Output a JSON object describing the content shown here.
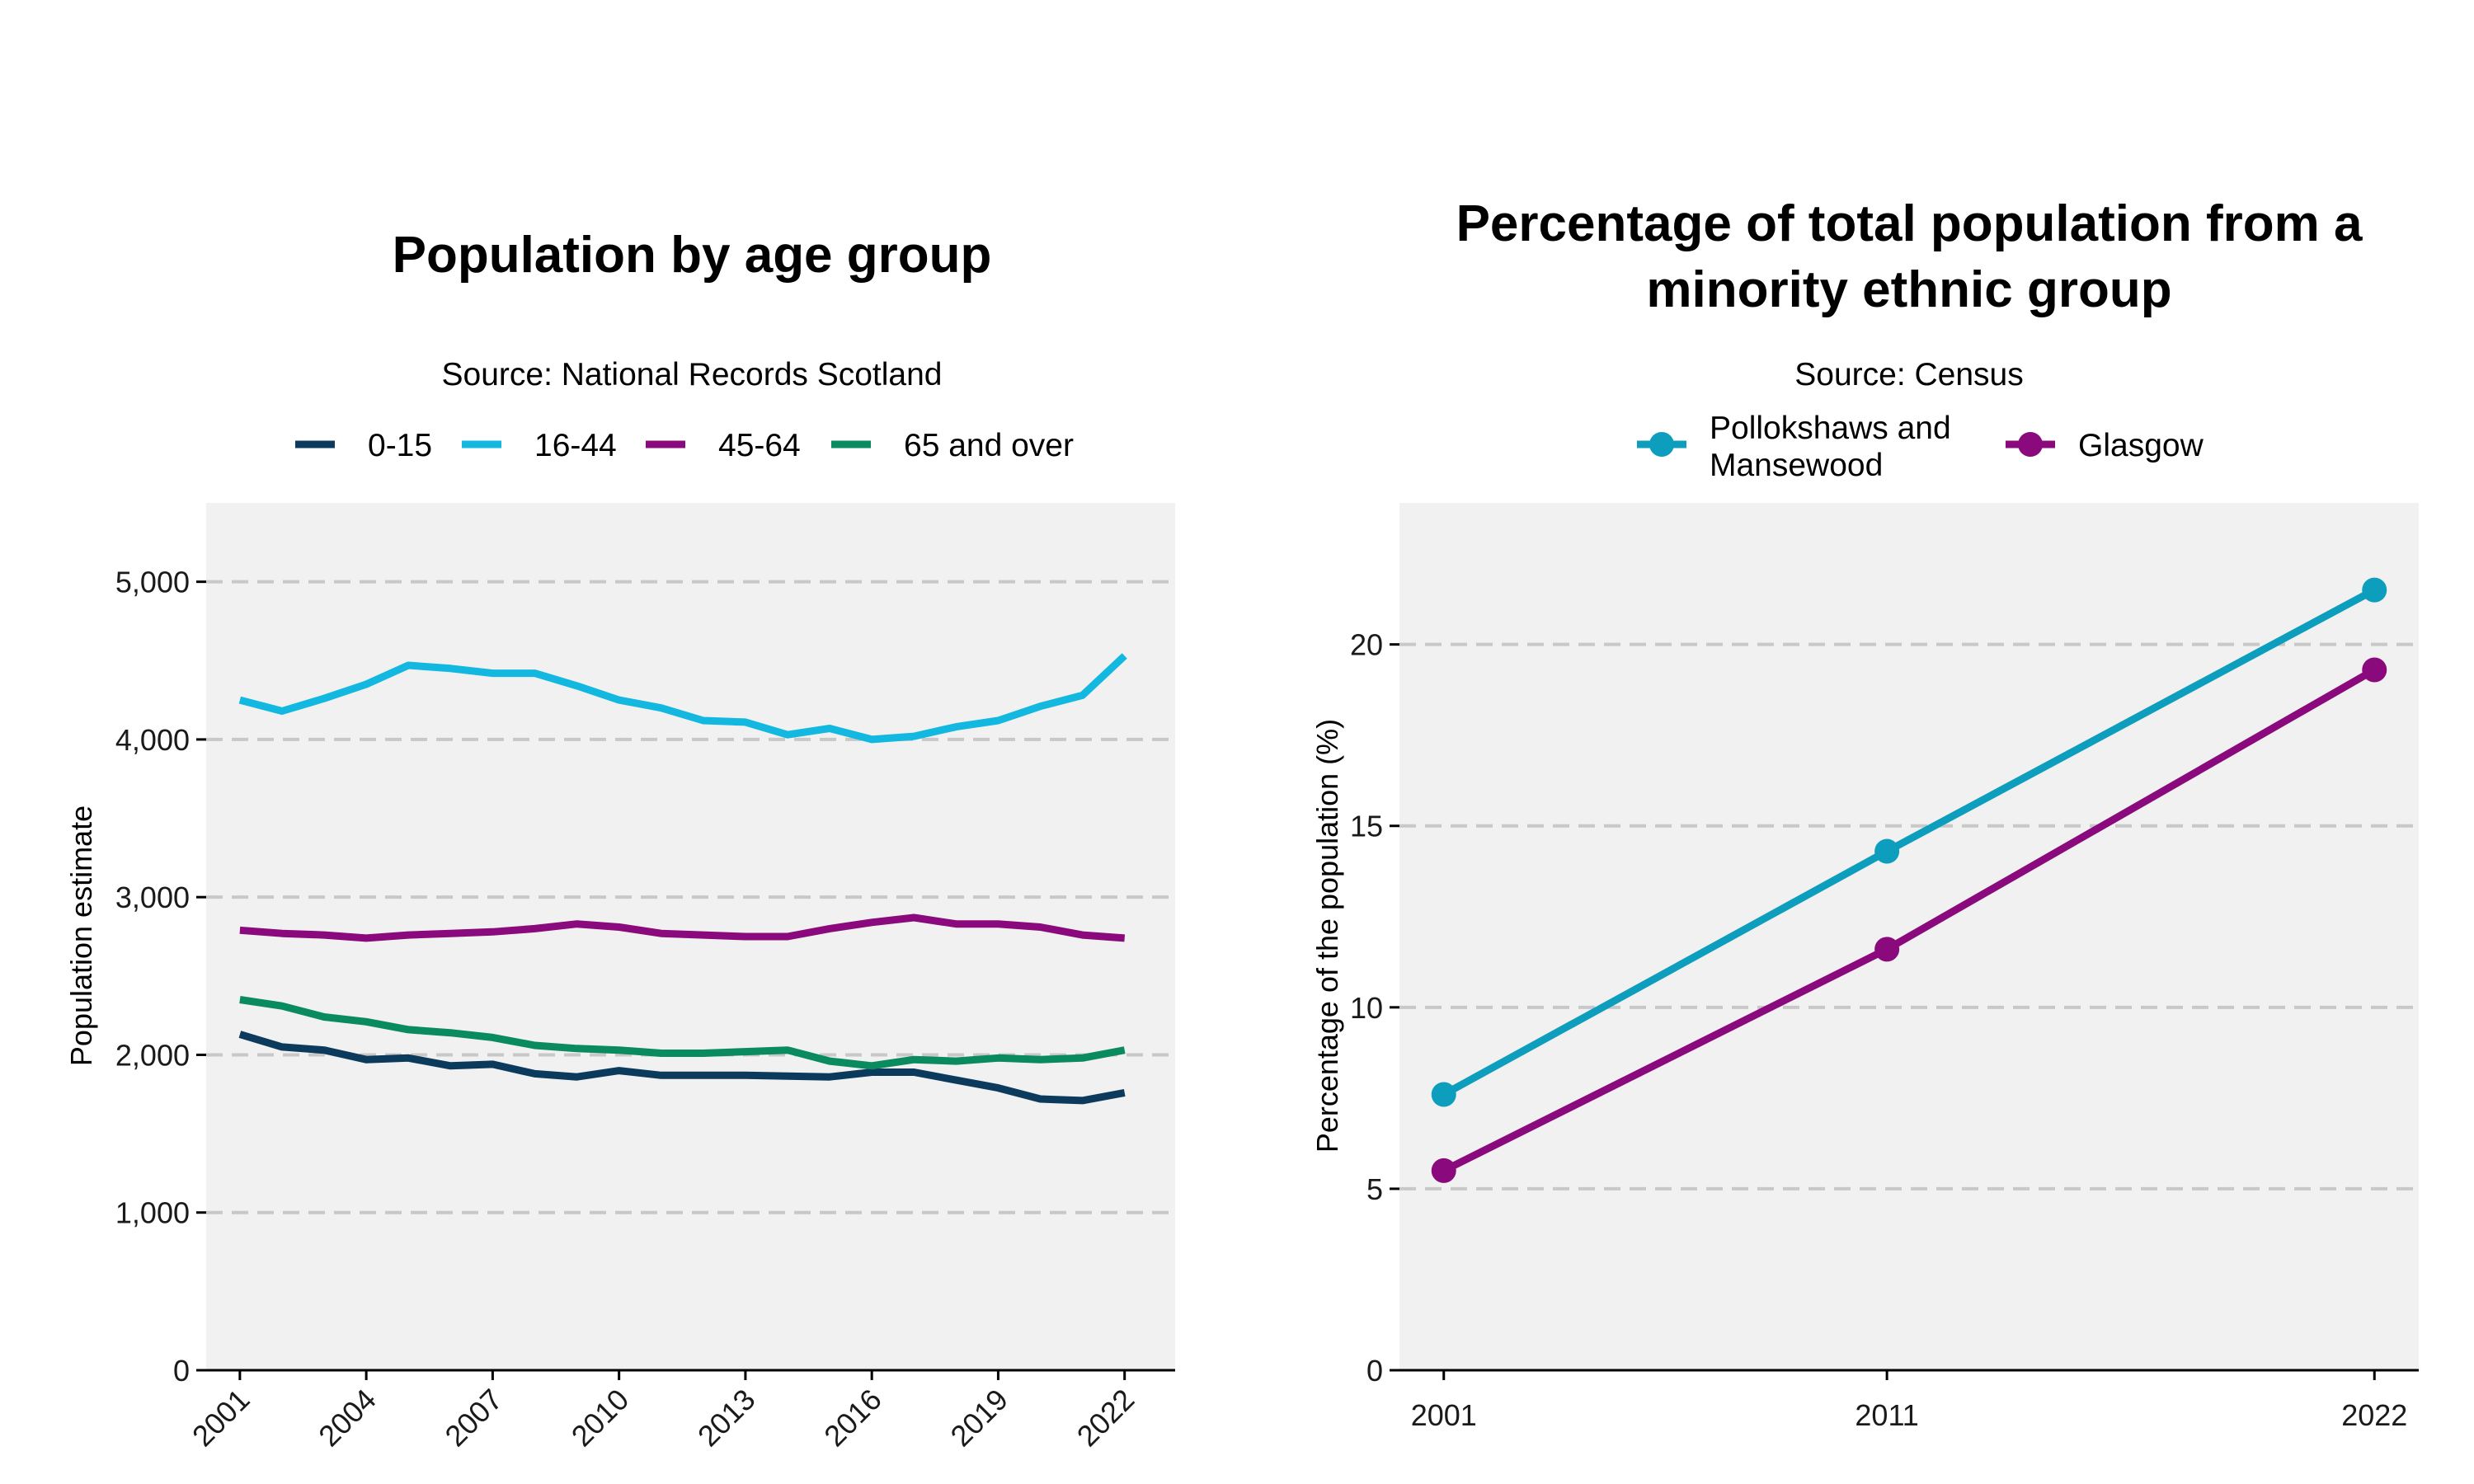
{
  "chart_data": [
    {
      "type": "line",
      "title": "Population by age group",
      "subtitle": "Source: National Records Scotland",
      "xlabel": "",
      "ylabel": "Population estimate",
      "ylim": [
        0,
        5500
      ],
      "xlim": [
        2000.2,
        2023.2
      ],
      "yticks": [
        0,
        1000,
        2000,
        3000,
        4000,
        5000
      ],
      "ytick_labels": [
        "0",
        "1,000",
        "2,000",
        "3,000",
        "4,000",
        "5,000"
      ],
      "xticks": [
        2001,
        2004,
        2007,
        2010,
        2013,
        2016,
        2019,
        2022
      ],
      "xtick_labels": [
        "2001",
        "2004",
        "2007",
        "2010",
        "2013",
        "2016",
        "2019",
        "2022"
      ],
      "legend_position": "top",
      "x": [
        2001,
        2002,
        2003,
        2004,
        2005,
        2006,
        2007,
        2008,
        2009,
        2010,
        2011,
        2012,
        2013,
        2014,
        2015,
        2016,
        2017,
        2018,
        2019,
        2020,
        2021,
        2022
      ],
      "series": [
        {
          "name": "0-15",
          "color": "#0b3a5c",
          "values": [
            2130,
            2050,
            2030,
            1970,
            1980,
            1930,
            1940,
            1880,
            1860,
            1900,
            1870,
            1870,
            1870,
            1865,
            1860,
            1890,
            1890,
            1840,
            1790,
            1720,
            1710,
            1760
          ]
        },
        {
          "name": "16-44",
          "color": "#12b8e0",
          "values": [
            4250,
            4180,
            4260,
            4350,
            4470,
            4450,
            4420,
            4420,
            4340,
            4250,
            4200,
            4120,
            4110,
            4030,
            4070,
            4000,
            4020,
            4080,
            4120,
            4210,
            4280,
            4530
          ]
        },
        {
          "name": "45-64",
          "color": "#8a0a7d",
          "values": [
            2790,
            2770,
            2760,
            2740,
            2760,
            2770,
            2780,
            2800,
            2830,
            2810,
            2770,
            2760,
            2750,
            2750,
            2800,
            2840,
            2870,
            2830,
            2830,
            2810,
            2760,
            2740
          ]
        },
        {
          "name": "65 and over",
          "color": "#0a8a5f",
          "values": [
            2350,
            2310,
            2240,
            2210,
            2160,
            2140,
            2110,
            2060,
            2040,
            2030,
            2010,
            2010,
            2020,
            2030,
            1960,
            1930,
            1970,
            1960,
            1980,
            1970,
            1980,
            2030
          ]
        }
      ]
    },
    {
      "type": "line",
      "title": "Percentage of total population from a minority ethnic group",
      "title_lines": [
        "Percentage of total population from a",
        "minority ethnic group"
      ],
      "subtitle": "Source: Census",
      "xlabel": "",
      "ylabel": "Percentage of the population (%)",
      "ylim": [
        0,
        23.9
      ],
      "yticks": [
        0,
        5,
        10,
        15,
        20
      ],
      "ytick_labels": [
        "0",
        "5",
        "10",
        "15",
        "20"
      ],
      "categories": [
        "2001",
        "2011",
        "2022"
      ],
      "x_positions": [
        2001,
        2011,
        2022
      ],
      "xlim": [
        2000.0,
        2023.0
      ],
      "legend_position": "top",
      "markers": true,
      "series": [
        {
          "name": "Pollokshaws and Mansewood",
          "name_lines": [
            "Pollokshaws and",
            "Mansewood"
          ],
          "color": "#0d9ebe",
          "values": [
            7.6,
            14.3,
            21.5
          ]
        },
        {
          "name": "Glasgow",
          "name_lines": [
            "Glasgow"
          ],
          "color": "#8a0a7d",
          "values": [
            5.5,
            11.6,
            19.3
          ]
        }
      ]
    }
  ]
}
